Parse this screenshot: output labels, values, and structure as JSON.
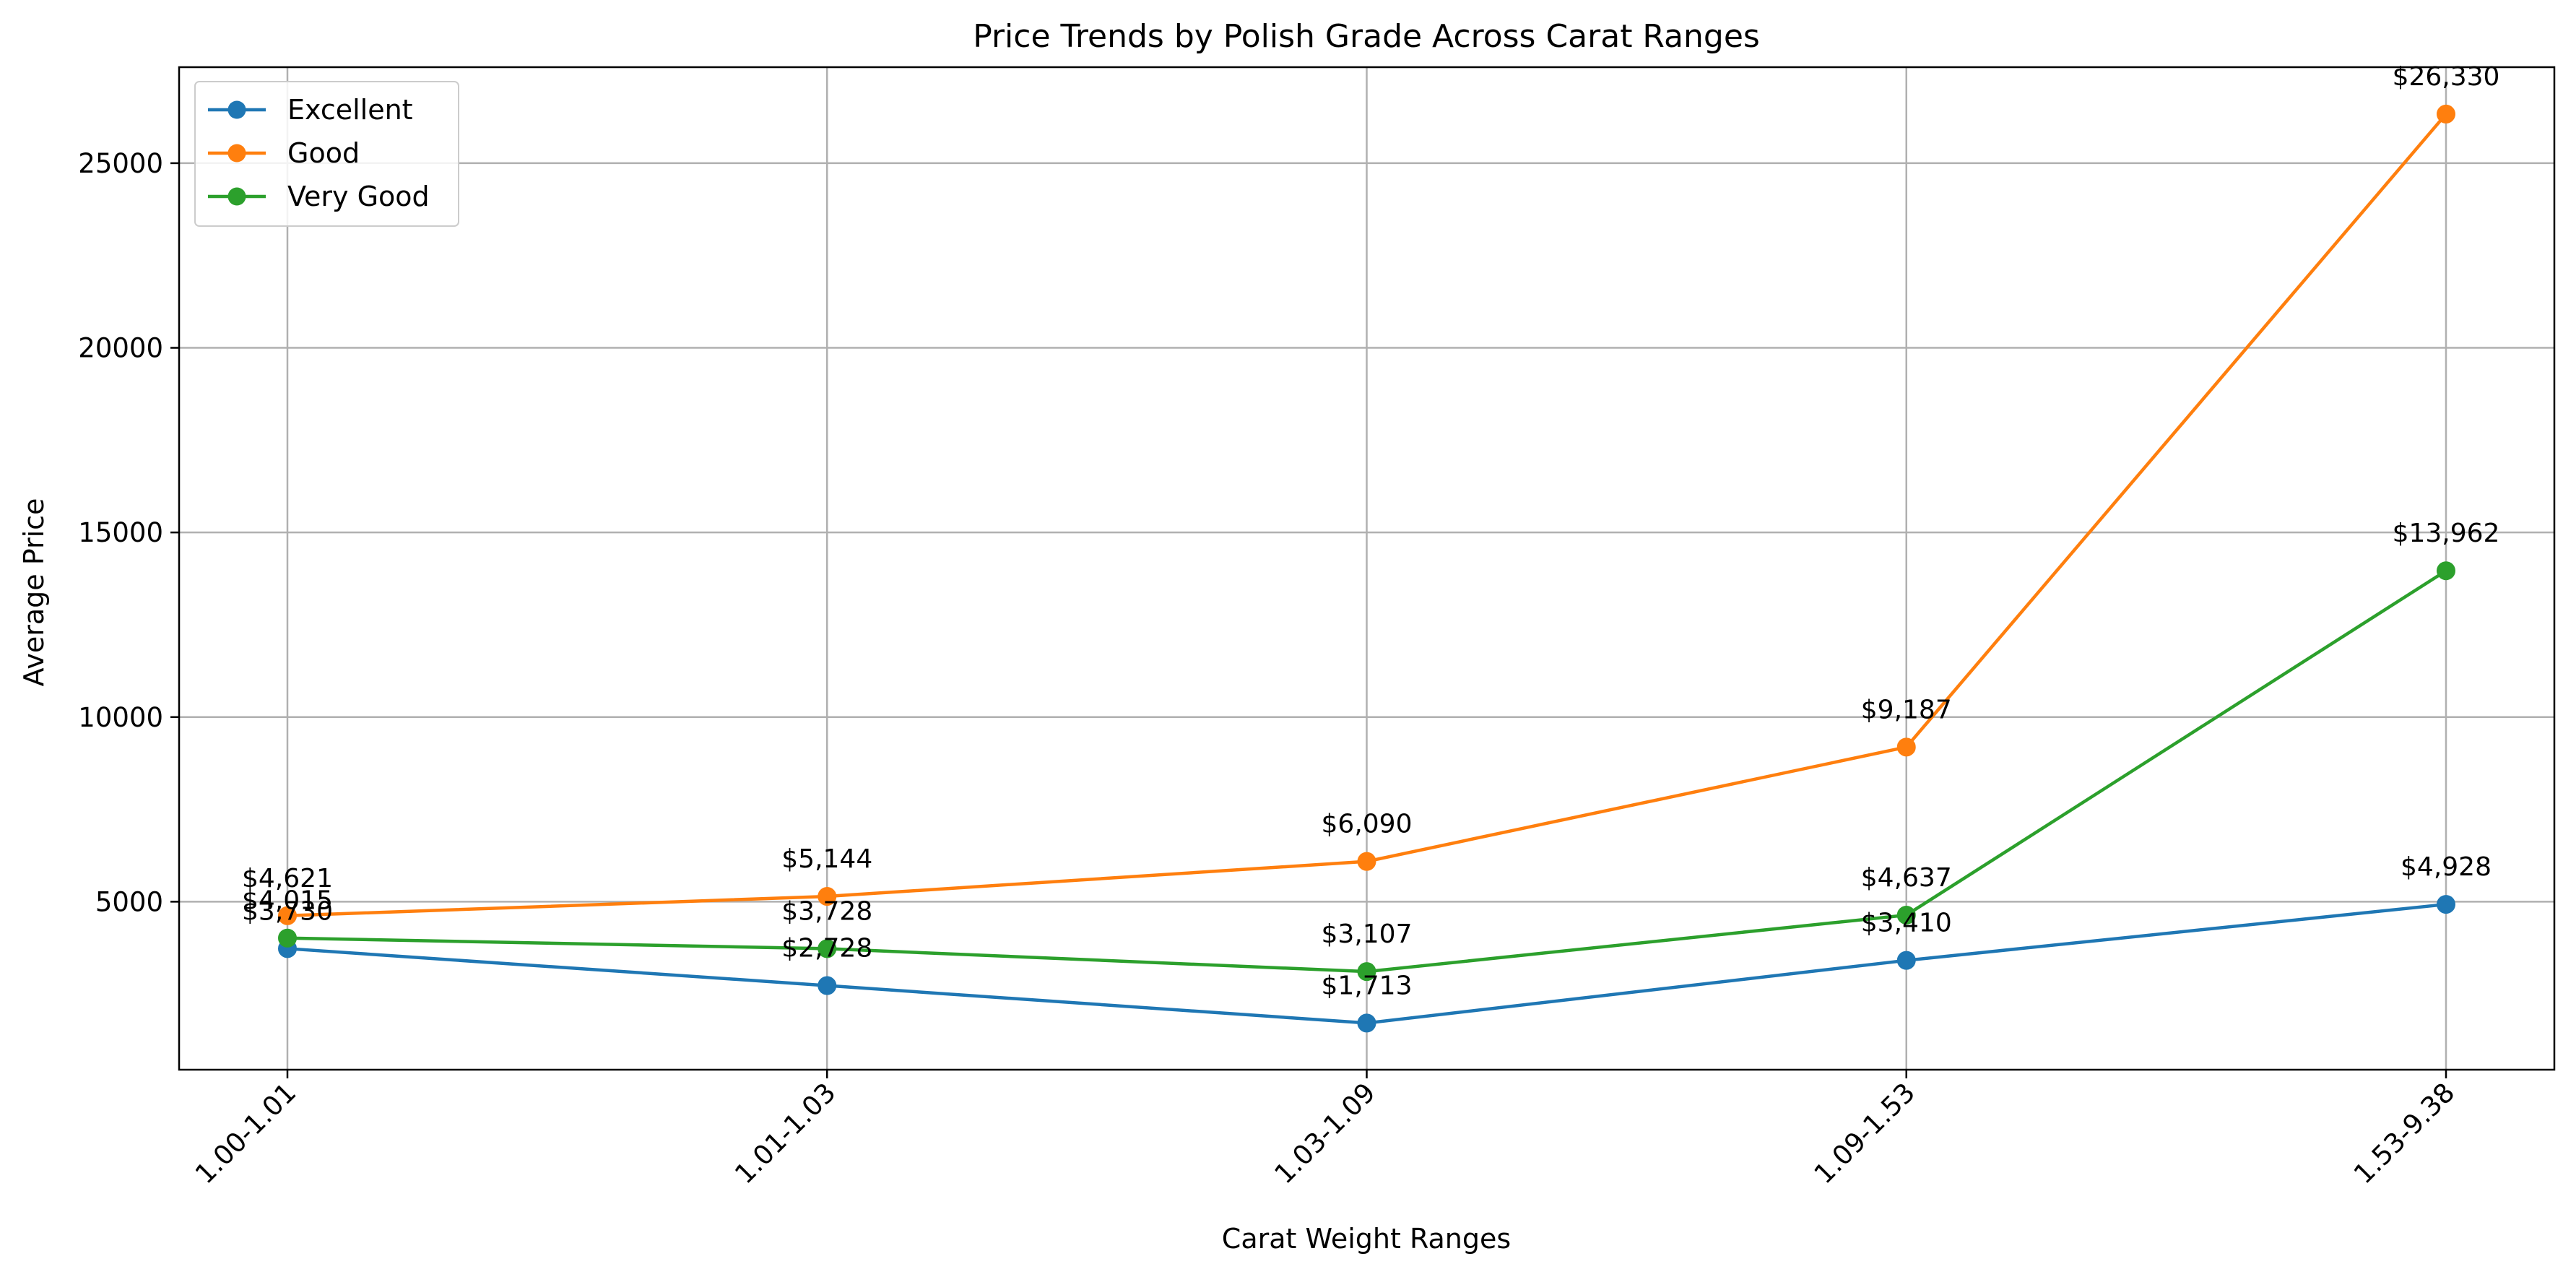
{
  "chart_data": {
    "type": "line",
    "title": "Price Trends by Polish Grade Across Carat Ranges",
    "xlabel": "Carat Weight Ranges",
    "ylabel": "Average Price",
    "categories": [
      "1.00-1.01",
      "1.01-1.03",
      "1.03-1.09",
      "1.09-1.53",
      "1.53-9.38"
    ],
    "ylim": [
      450,
      27600
    ],
    "yticks": [
      5000,
      10000,
      15000,
      20000,
      25000
    ],
    "grid": true,
    "legend_position": "top-left",
    "series": [
      {
        "name": "Excellent",
        "color": "#1f77b4",
        "values": [
          3730,
          2728,
          1713,
          3410,
          4928
        ],
        "labels": [
          "$3,730",
          "$2,728",
          "$1,713",
          "$3,410",
          "$4,928"
        ]
      },
      {
        "name": "Good",
        "color": "#ff7f0e",
        "values": [
          4621,
          5144,
          6090,
          9187,
          26330
        ],
        "labels": [
          "$4,621",
          "$5,144",
          "$6,090",
          "$9,187",
          "$26,330"
        ]
      },
      {
        "name": "Very Good",
        "color": "#2ca02c",
        "values": [
          4015,
          3728,
          3107,
          4637,
          13962
        ],
        "labels": [
          "$4,015",
          "$3,728",
          "$3,107",
          "$4,637",
          "$13,962"
        ]
      }
    ]
  }
}
